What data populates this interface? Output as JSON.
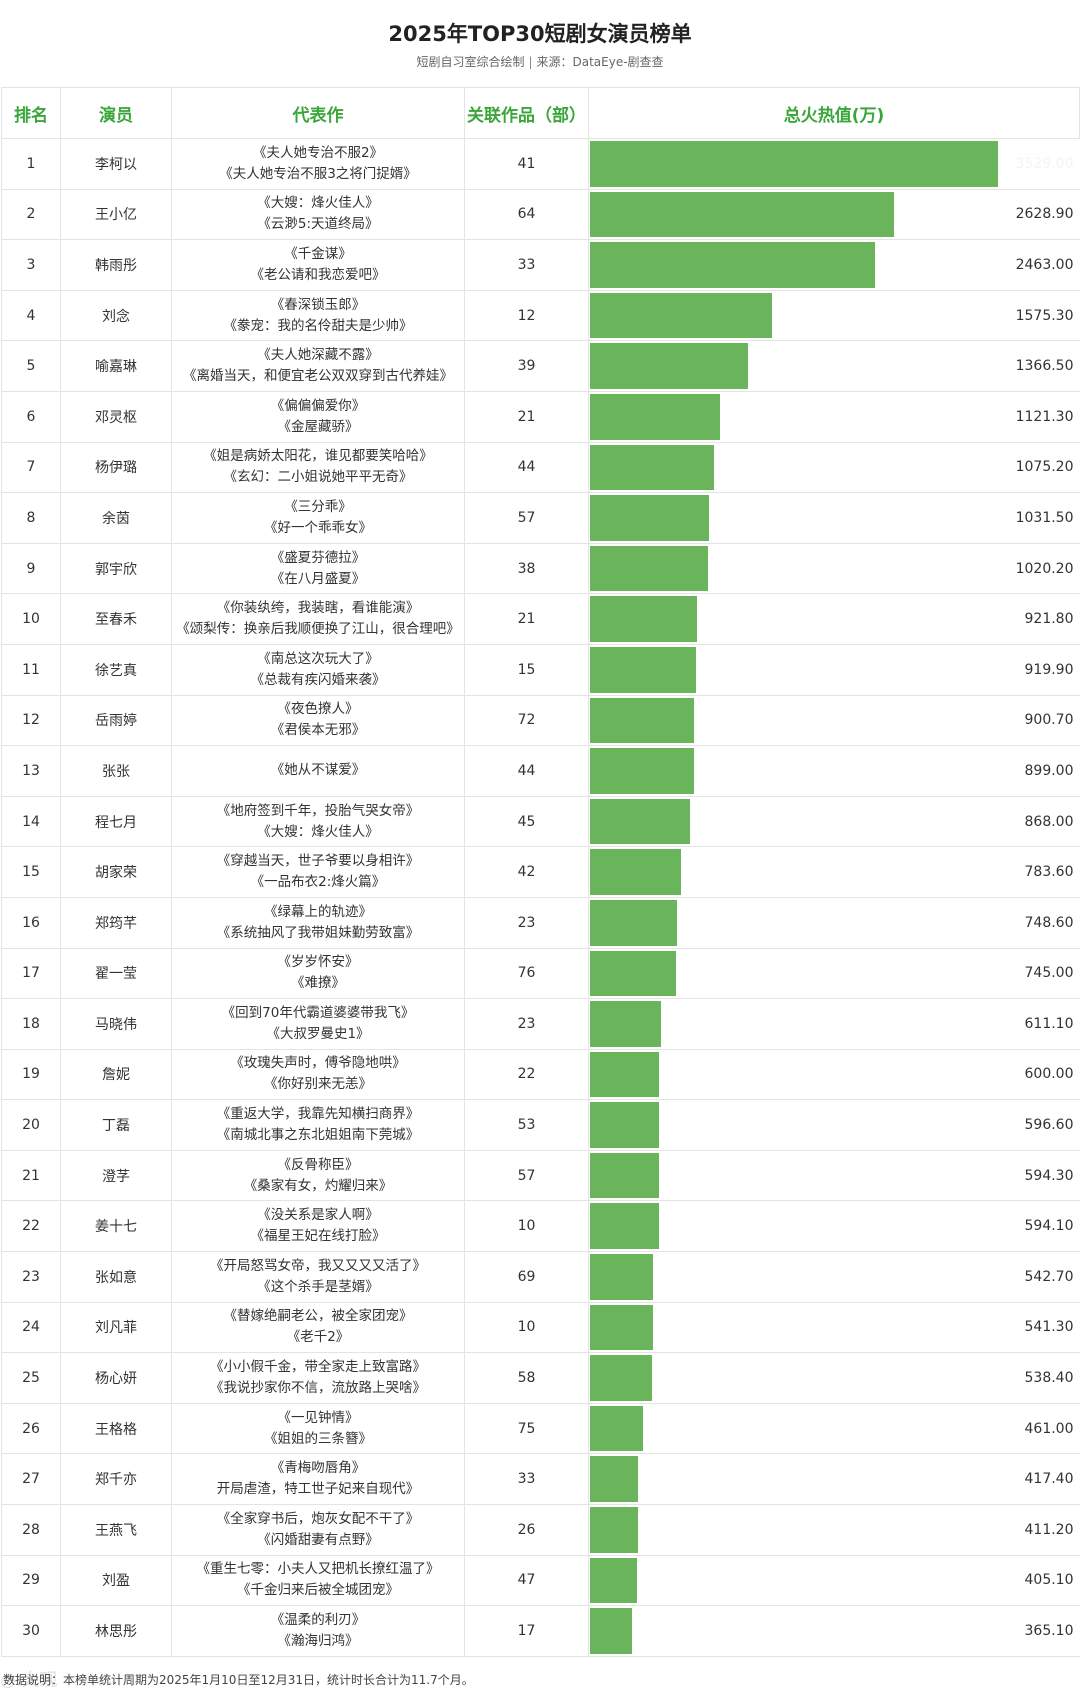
{
  "header": {
    "title": "2025年TOP30短剧女演员榜单",
    "subtitle_left": "短剧自习室综合绘制",
    "subtitle_sep": "|",
    "subtitle_right": "来源：DataEye-剧查查"
  },
  "columns": {
    "rank": "排名",
    "actor": "演员",
    "works": "代表作",
    "count": "关联作品（部）",
    "heat": "总火热值(万)"
  },
  "chart_data": {
    "type": "table",
    "bar_column": "总火热值(万)",
    "bar_max": 3529.0,
    "rows": [
      {
        "rank": "1",
        "actor": "李柯以",
        "works": [
          "《夫人她专治不服2》",
          "《夫人她专治不服3之将门捉婿》"
        ],
        "count": "41",
        "heat": 3529.0,
        "heat_label": "3529.00"
      },
      {
        "rank": "2",
        "actor": "王小亿",
        "works": [
          "《大嫂：烽火佳人》",
          "《云渺5:天道终局》"
        ],
        "count": "64",
        "heat": 2628.9,
        "heat_label": "2628.90"
      },
      {
        "rank": "3",
        "actor": "韩雨彤",
        "works": [
          "《千金谋》",
          "《老公请和我恋爱吧》"
        ],
        "count": "33",
        "heat": 2463.0,
        "heat_label": "2463.00"
      },
      {
        "rank": "4",
        "actor": "刘念",
        "works": [
          "《春深锁玉郎》",
          "《豢宠：我的名伶甜夫是少帅》"
        ],
        "count": "12",
        "heat": 1575.3,
        "heat_label": "1575.30"
      },
      {
        "rank": "5",
        "actor": "喻嘉琳",
        "works": [
          "《夫人她深藏不露》",
          "《离婚当天，和便宜老公双双穿到古代养娃》"
        ],
        "count": "39",
        "heat": 1366.5,
        "heat_label": "1366.50"
      },
      {
        "rank": "6",
        "actor": "邓灵枢",
        "works": [
          "《偏偏偏爱你》",
          "《金屋藏骄》"
        ],
        "count": "21",
        "heat": 1121.3,
        "heat_label": "1121.30"
      },
      {
        "rank": "7",
        "actor": "杨伊璐",
        "works": [
          "《姐是病娇太阳花，谁见都要笑哈哈》",
          "《玄幻：二小姐说她平平无奇》"
        ],
        "count": "44",
        "heat": 1075.2,
        "heat_label": "1075.20"
      },
      {
        "rank": "8",
        "actor": "余茵",
        "works": [
          "《三分乖》",
          "《好一个乖乖女》"
        ],
        "count": "57",
        "heat": 1031.5,
        "heat_label": "1031.50"
      },
      {
        "rank": "9",
        "actor": "郭宇欣",
        "works": [
          "《盛夏芬德拉》",
          "《在八月盛夏》"
        ],
        "count": "38",
        "heat": 1020.2,
        "heat_label": "1020.20"
      },
      {
        "rank": "10",
        "actor": "至春禾",
        "works": [
          "《你装纨绔，我装瞎，看谁能演》",
          "《颂梨传：换亲后我顺便换了江山，很合理吧》"
        ],
        "count": "21",
        "heat": 921.8,
        "heat_label": "921.80"
      },
      {
        "rank": "11",
        "actor": "徐艺真",
        "works": [
          "《南总这次玩大了》",
          "《总裁有疾闪婚来袭》"
        ],
        "count": "15",
        "heat": 919.9,
        "heat_label": "919.90"
      },
      {
        "rank": "12",
        "actor": "岳雨婷",
        "works": [
          "《夜色撩人》",
          "《君侯本无邪》"
        ],
        "count": "72",
        "heat": 900.7,
        "heat_label": "900.70"
      },
      {
        "rank": "13",
        "actor": "张张",
        "works": [
          "《她从不谋爱》"
        ],
        "count": "44",
        "heat": 899.0,
        "heat_label": "899.00"
      },
      {
        "rank": "14",
        "actor": "程七月",
        "works": [
          "《地府签到千年，投胎气哭女帝》",
          "《大嫂：烽火佳人》"
        ],
        "count": "45",
        "heat": 868.0,
        "heat_label": "868.00"
      },
      {
        "rank": "15",
        "actor": "胡家荣",
        "works": [
          "《穿越当天，世子爷要以身相许》",
          "《一品布衣2:烽火篇》"
        ],
        "count": "42",
        "heat": 783.6,
        "heat_label": "783.60"
      },
      {
        "rank": "16",
        "actor": "郑筠芊",
        "works": [
          "《绿幕上的轨迹》",
          "《系统抽风了我带姐妹勤劳致富》"
        ],
        "count": "23",
        "heat": 748.6,
        "heat_label": "748.60"
      },
      {
        "rank": "17",
        "actor": "翟一莹",
        "works": [
          "《岁岁怀安》",
          "《难撩》"
        ],
        "count": "76",
        "heat": 745.0,
        "heat_label": "745.00"
      },
      {
        "rank": "18",
        "actor": "马晓伟",
        "works": [
          "《回到70年代霸道婆婆带我飞》",
          "《大叔罗曼史1》"
        ],
        "count": "23",
        "heat": 611.1,
        "heat_label": "611.10"
      },
      {
        "rank": "19",
        "actor": "詹妮",
        "works": [
          "《玫瑰失声时，傅爷隐地哄》",
          "《你好别来无恙》"
        ],
        "count": "22",
        "heat": 600.0,
        "heat_label": "600.00"
      },
      {
        "rank": "20",
        "actor": "丁磊",
        "works": [
          "《重返大学，我靠先知横扫商界》",
          "《南城北事之东北姐姐南下莞城》"
        ],
        "count": "53",
        "heat": 596.6,
        "heat_label": "596.60"
      },
      {
        "rank": "21",
        "actor": "澄芓",
        "works": [
          "《反骨称臣》",
          "《桑家有女，灼耀归来》"
        ],
        "count": "57",
        "heat": 594.3,
        "heat_label": "594.30"
      },
      {
        "rank": "22",
        "actor": "姜十七",
        "works": [
          "《没关系是家人啊》",
          "《福星王妃在线打脸》"
        ],
        "count": "10",
        "heat": 594.1,
        "heat_label": "594.10"
      },
      {
        "rank": "23",
        "actor": "张如意",
        "works": [
          "《开局怒骂女帝，我又又又又活了》",
          "《这个杀手是茎婿》"
        ],
        "count": "69",
        "heat": 542.7,
        "heat_label": "542.70"
      },
      {
        "rank": "24",
        "actor": "刘凡菲",
        "works": [
          "《替嫁绝嗣老公，被全家团宠》",
          "《老千2》"
        ],
        "count": "10",
        "heat": 541.3,
        "heat_label": "541.30"
      },
      {
        "rank": "25",
        "actor": "杨心妍",
        "works": [
          "《小小假千金，带全家走上致富路》",
          "《我说抄家你不信，流放路上哭啥》"
        ],
        "count": "58",
        "heat": 538.4,
        "heat_label": "538.40"
      },
      {
        "rank": "26",
        "actor": "王格格",
        "works": [
          "《一见钟情》",
          "《姐姐的三条簪》"
        ],
        "count": "75",
        "heat": 461.0,
        "heat_label": "461.00"
      },
      {
        "rank": "27",
        "actor": "郑千亦",
        "works": [
          "《青梅吻唇角》",
          "开局虐渣，特工世子妃来自现代》"
        ],
        "count": "33",
        "heat": 417.4,
        "heat_label": "417.40"
      },
      {
        "rank": "28",
        "actor": "王燕飞",
        "works": [
          "《全家穿书后，炮灰女配不干了》",
          "《闪婚甜妻有点野》"
        ],
        "count": "26",
        "heat": 411.2,
        "heat_label": "411.20"
      },
      {
        "rank": "29",
        "actor": "刘盈",
        "works": [
          "《重生七零：小夫人又把机长撩红温了》",
          "《千金归来后被全城团宠》"
        ],
        "count": "47",
        "heat": 405.1,
        "heat_label": "405.10"
      },
      {
        "rank": "30",
        "actor": "林思彤",
        "works": [
          "《温柔的利刃》",
          "《瀚海归鸿》"
        ],
        "count": "17",
        "heat": 365.1,
        "heat_label": "365.10"
      }
    ]
  },
  "footer": {
    "note": "数据说明：本榜单统计周期为2025年1月10日至12月31日，统计时长合计为11.7个月。"
  }
}
